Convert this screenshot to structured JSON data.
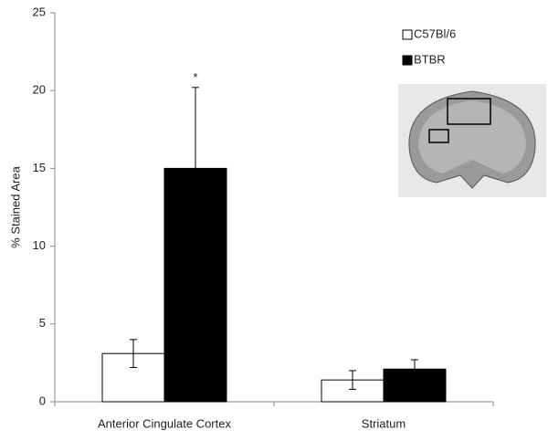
{
  "chart_data": {
    "type": "bar",
    "y_label": "% Stained Area",
    "categories": [
      "Anterior Cingulate Cortex",
      "Striatum"
    ],
    "series": [
      {
        "name": "C57Bl/6",
        "color": "#ffffff",
        "values": [
          3.1,
          1.4
        ],
        "errors": [
          0.9,
          0.6
        ]
      },
      {
        "name": "BTBR",
        "color": "#000000",
        "values": [
          15.0,
          2.1
        ],
        "errors": [
          5.2,
          0.6
        ]
      }
    ],
    "annotation": "*",
    "ylim": [
      0,
      25
    ],
    "yticks": [
      0,
      5,
      10,
      15,
      20,
      25
    ],
    "legend": "top-right"
  }
}
